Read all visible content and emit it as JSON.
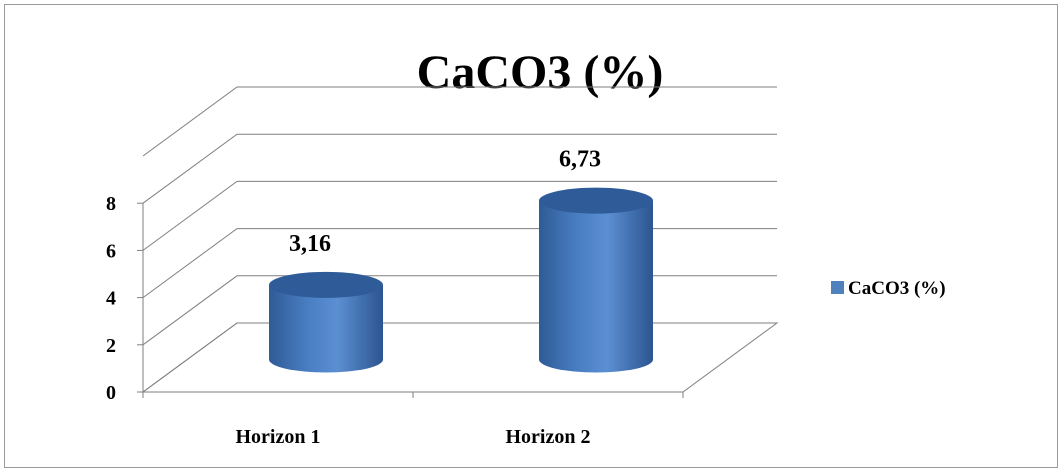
{
  "chart_data": {
    "type": "bar",
    "title": "CaCO3  (%)",
    "categories": [
      "Horizon 1",
      "Horizon 2"
    ],
    "series": [
      {
        "name": "CaCO3  (%)",
        "values": [
          3.16,
          6.73
        ],
        "labels": [
          "3,16",
          "6,73"
        ],
        "color": "#4F81BD"
      }
    ],
    "yticks": [
      "0",
      "2",
      "4",
      "6",
      "8"
    ],
    "ylim": [
      0,
      10
    ],
    "grid": true,
    "legend": "right",
    "style": "3d-cylinder"
  }
}
